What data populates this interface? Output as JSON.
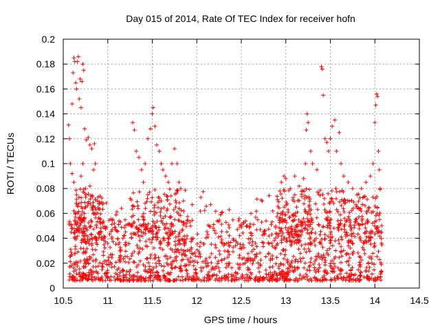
{
  "chart_data": {
    "type": "scatter",
    "title": "Day 015 of 2014, Rate Of TEC Index for receiver hofn",
    "xlabel": "GPS time / hours",
    "ylabel": "ROTI / TECUs",
    "xlim": [
      10.5,
      14.5
    ],
    "ylim": [
      0,
      0.2
    ],
    "grid": true,
    "marker": "plus",
    "color": "#ff0000",
    "x_ticks": [
      "10.5",
      "11",
      "11.5",
      "12",
      "12.5",
      "13",
      "13.5",
      "14",
      "14.5"
    ],
    "y_ticks": [
      "0",
      "0.02",
      "0.04",
      "0.06",
      "0.08",
      "0.1",
      "0.12",
      "0.14",
      "0.16",
      "0.18",
      "0.2"
    ],
    "x_tick_values": [
      10.5,
      11,
      11.5,
      12,
      12.5,
      13,
      13.5,
      14,
      14.5
    ],
    "y_tick_values": [
      0,
      0.02,
      0.04,
      0.06,
      0.08,
      0.1,
      0.12,
      0.14,
      0.16,
      0.18,
      0.2
    ],
    "series": [
      {
        "name": "ROTI",
        "points": [
          [
            10.56,
            0.131
          ],
          [
            10.57,
            0.12
          ],
          [
            10.58,
            0.1
          ],
          [
            10.6,
            0.148
          ],
          [
            10.61,
            0.173
          ],
          [
            10.62,
            0.185
          ],
          [
            10.63,
            0.182
          ],
          [
            10.64,
            0.165
          ],
          [
            10.65,
            0.16
          ],
          [
            10.66,
            0.182
          ],
          [
            10.67,
            0.186
          ],
          [
            10.68,
            0.152
          ],
          [
            10.69,
            0.168
          ],
          [
            10.7,
            0.145
          ],
          [
            10.71,
            0.166
          ],
          [
            10.72,
            0.18
          ],
          [
            10.73,
            0.175
          ],
          [
            10.74,
            0.128
          ],
          [
            10.76,
            0.119
          ],
          [
            10.78,
            0.121
          ],
          [
            10.8,
            0.115
          ],
          [
            10.82,
            0.112
          ],
          [
            10.85,
            0.116
          ],
          [
            10.86,
            0.1
          ],
          [
            10.6,
            0.092
          ],
          [
            10.62,
            0.085
          ],
          [
            10.65,
            0.075
          ],
          [
            10.7,
            0.09
          ],
          [
            10.72,
            0.1
          ],
          [
            10.75,
            0.08
          ],
          [
            10.8,
            0.082
          ],
          [
            10.84,
            0.095
          ],
          [
            10.88,
            0.07
          ],
          [
            11.28,
            0.133
          ],
          [
            11.3,
            0.127
          ],
          [
            11.32,
            0.11
          ],
          [
            11.35,
            0.105
          ],
          [
            11.38,
            0.095
          ],
          [
            11.42,
            0.1
          ],
          [
            11.45,
            0.12
          ],
          [
            11.48,
            0.128
          ],
          [
            11.5,
            0.14
          ],
          [
            11.51,
            0.145
          ],
          [
            11.53,
            0.13
          ],
          [
            11.55,
            0.115
          ],
          [
            11.58,
            0.11
          ],
          [
            11.6,
            0.1
          ],
          [
            11.62,
            0.095
          ],
          [
            11.65,
            0.09
          ],
          [
            11.68,
            0.085
          ],
          [
            11.72,
            0.1
          ],
          [
            11.75,
            0.112
          ],
          [
            11.78,
            0.1
          ],
          [
            11.8,
            0.085
          ],
          [
            11.82,
            0.08
          ],
          [
            11.85,
            0.07
          ],
          [
            11.4,
            0.085
          ],
          [
            11.45,
            0.075
          ],
          [
            11.6,
            0.07
          ],
          [
            12.95,
            0.085
          ],
          [
            12.98,
            0.09
          ],
          [
            13.0,
            0.088
          ],
          [
            13.05,
            0.08
          ],
          [
            13.1,
            0.09
          ],
          [
            13.15,
            0.082
          ],
          [
            13.2,
            0.088
          ],
          [
            13.22,
            0.1
          ],
          [
            13.23,
            0.127
          ],
          [
            13.24,
            0.14
          ],
          [
            13.25,
            0.133
          ],
          [
            13.28,
            0.11
          ],
          [
            13.3,
            0.1
          ],
          [
            13.35,
            0.095
          ],
          [
            13.4,
            0.178
          ],
          [
            13.41,
            0.176
          ],
          [
            13.42,
            0.155
          ],
          [
            13.44,
            0.12
          ],
          [
            13.46,
            0.117
          ],
          [
            13.48,
            0.11
          ],
          [
            13.5,
            0.12
          ],
          [
            13.52,
            0.13
          ],
          [
            13.55,
            0.135
          ],
          [
            13.57,
            0.11
          ],
          [
            13.6,
            0.125
          ],
          [
            13.62,
            0.1
          ],
          [
            13.65,
            0.09
          ],
          [
            13.7,
            0.085
          ],
          [
            13.75,
            0.08
          ],
          [
            13.8,
            0.075
          ],
          [
            13.85,
            0.08
          ],
          [
            13.9,
            0.085
          ],
          [
            13.95,
            0.09
          ],
          [
            13.98,
            0.1
          ],
          [
            14.0,
            0.133
          ],
          [
            14.01,
            0.147
          ],
          [
            14.02,
            0.156
          ],
          [
            14.03,
            0.154
          ],
          [
            14.04,
            0.11
          ],
          [
            14.05,
            0.095
          ],
          [
            14.06,
            0.08
          ]
        ]
      }
    ],
    "background_cloud_note": "dense band 0.005-0.065 over 10.55-14.1"
  }
}
